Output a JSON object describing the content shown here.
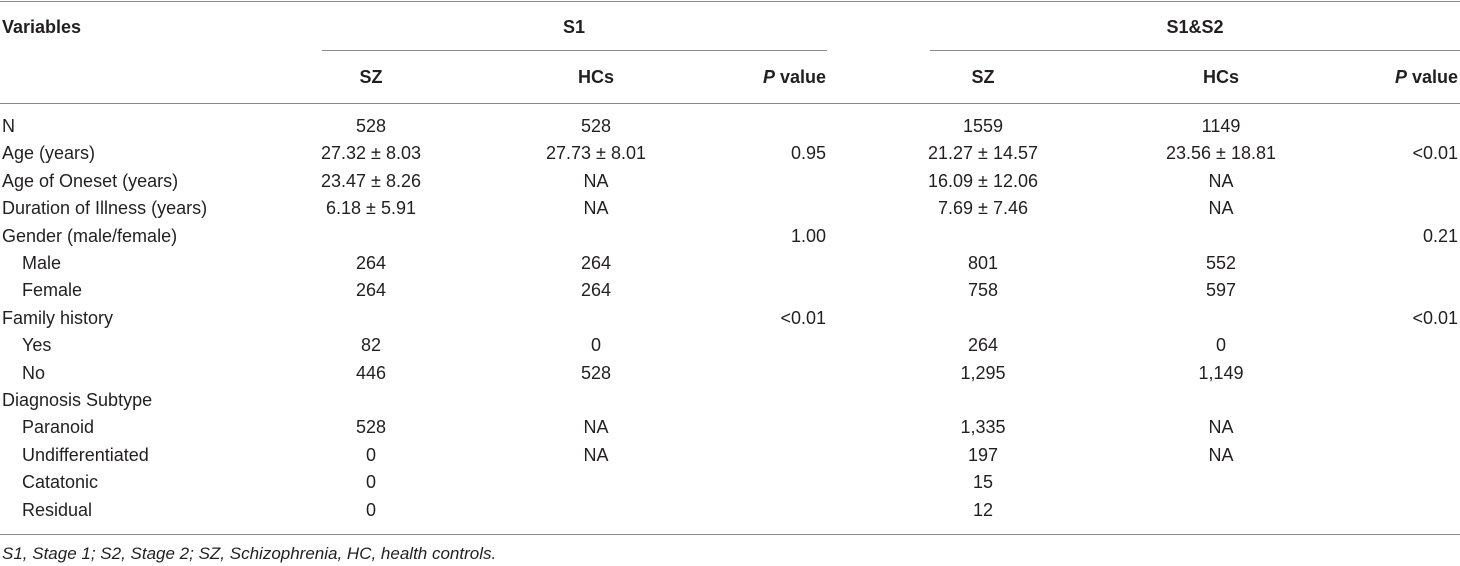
{
  "header": {
    "variables_label": "Variables",
    "group_s1": "S1",
    "group_s1s2": "S1&S2",
    "col_sz": "SZ",
    "col_hcs": "HCs",
    "col_p_italic": "P",
    "col_p_rest": " value"
  },
  "rows": [
    {
      "label": "N",
      "indent": false,
      "s1_sz": "528",
      "s1_hc": "528",
      "s1_p": "",
      "s2_sz": "1559",
      "s2_hc": "1149",
      "s2_p": ""
    },
    {
      "label": "Age (years)",
      "indent": false,
      "s1_sz": "27.32 ± 8.03",
      "s1_hc": "27.73 ± 8.01",
      "s1_p": "0.95",
      "s2_sz": "21.27 ± 14.57",
      "s2_hc": "23.56 ± 18.81",
      "s2_p": "<0.01"
    },
    {
      "label": "Age of Oneset (years)",
      "indent": false,
      "s1_sz": "23.47 ± 8.26",
      "s1_hc": "NA",
      "s1_p": "",
      "s2_sz": "16.09 ± 12.06",
      "s2_hc": "NA",
      "s2_p": ""
    },
    {
      "label": "Duration of Illness (years)",
      "indent": false,
      "s1_sz": "6.18 ± 5.91",
      "s1_hc": "NA",
      "s1_p": "",
      "s2_sz": "7.69 ± 7.46",
      "s2_hc": "NA",
      "s2_p": ""
    },
    {
      "label": "Gender (male/female)",
      "indent": false,
      "s1_sz": "",
      "s1_hc": "",
      "s1_p": "1.00",
      "s2_sz": "",
      "s2_hc": "",
      "s2_p": "0.21"
    },
    {
      "label": "Male",
      "indent": true,
      "s1_sz": "264",
      "s1_hc": "264",
      "s1_p": "",
      "s2_sz": "801",
      "s2_hc": "552",
      "s2_p": ""
    },
    {
      "label": "Female",
      "indent": true,
      "s1_sz": "264",
      "s1_hc": "264",
      "s1_p": "",
      "s2_sz": "758",
      "s2_hc": "597",
      "s2_p": ""
    },
    {
      "label": "Family history",
      "indent": false,
      "s1_sz": "",
      "s1_hc": "",
      "s1_p": "<0.01",
      "s2_sz": "",
      "s2_hc": "",
      "s2_p": "<0.01"
    },
    {
      "label": "Yes",
      "indent": true,
      "s1_sz": "82",
      "s1_hc": "0",
      "s1_p": "",
      "s2_sz": "264",
      "s2_hc": "0",
      "s2_p": ""
    },
    {
      "label": "No",
      "indent": true,
      "s1_sz": "446",
      "s1_hc": "528",
      "s1_p": "",
      "s2_sz": "1,295",
      "s2_hc": "1,149",
      "s2_p": ""
    },
    {
      "label": "Diagnosis Subtype",
      "indent": false,
      "s1_sz": "",
      "s1_hc": "",
      "s1_p": "",
      "s2_sz": "",
      "s2_hc": "",
      "s2_p": ""
    },
    {
      "label": "Paranoid",
      "indent": true,
      "s1_sz": "528",
      "s1_hc": "NA",
      "s1_p": "",
      "s2_sz": "1,335",
      "s2_hc": "NA",
      "s2_p": ""
    },
    {
      "label": "Undifferentiated",
      "indent": true,
      "s1_sz": "0",
      "s1_hc": "NA",
      "s1_p": "",
      "s2_sz": "197",
      "s2_hc": "NA",
      "s2_p": ""
    },
    {
      "label": "Catatonic",
      "indent": true,
      "s1_sz": "0",
      "s1_hc": "",
      "s1_p": "",
      "s2_sz": "15",
      "s2_hc": "",
      "s2_p": ""
    },
    {
      "label": "Residual",
      "indent": true,
      "s1_sz": "0",
      "s1_hc": "",
      "s1_p": "",
      "s2_sz": "12",
      "s2_hc": "",
      "s2_p": ""
    }
  ],
  "footnote": "S1, Stage 1; S2, Stage 2; SZ, Schizophrenia, HC, health controls."
}
